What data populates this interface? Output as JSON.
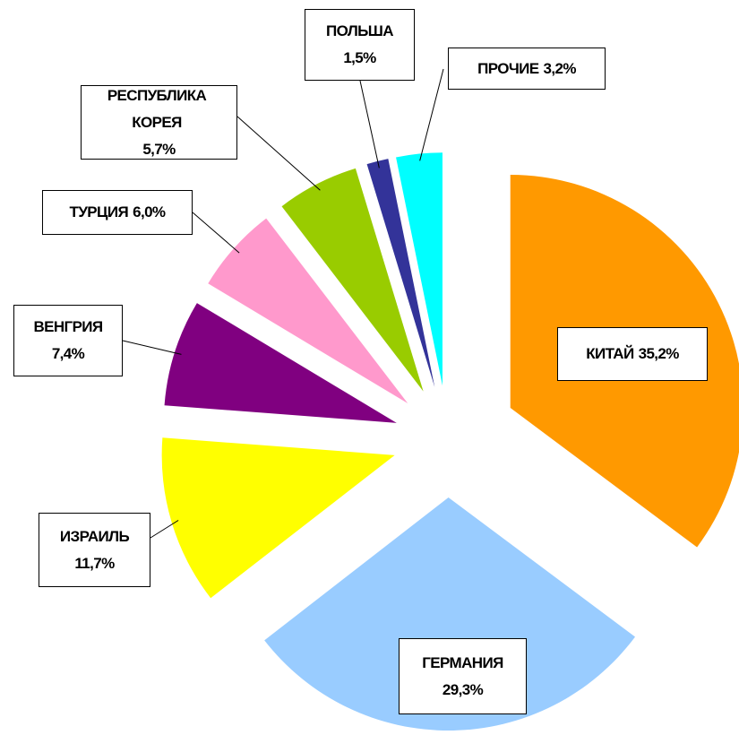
{
  "chart_data": {
    "type": "pie",
    "categories": [
      "КИТАЙ",
      "ГЕРМАНИЯ",
      "ИЗРАИЛЬ",
      "ВЕНГРИЯ",
      "ТУРЦИЯ",
      "РЕСПУБЛИКА КОРЕЯ",
      "ПОЛЬША",
      "ПРОЧИЕ"
    ],
    "values": [
      35.2,
      29.3,
      11.7,
      7.4,
      6.0,
      5.7,
      1.5,
      3.2
    ],
    "value_labels": [
      "35,2%",
      "29,3%",
      "11,7%",
      "7,4%",
      "6,0%",
      "5,7%",
      "1,5%",
      "3,2%"
    ],
    "colors": [
      "#ff9900",
      "#99ccff",
      "#ffff00",
      "#800080",
      "#ff99cc",
      "#99cc00",
      "#333399",
      "#00ffff"
    ]
  }
}
